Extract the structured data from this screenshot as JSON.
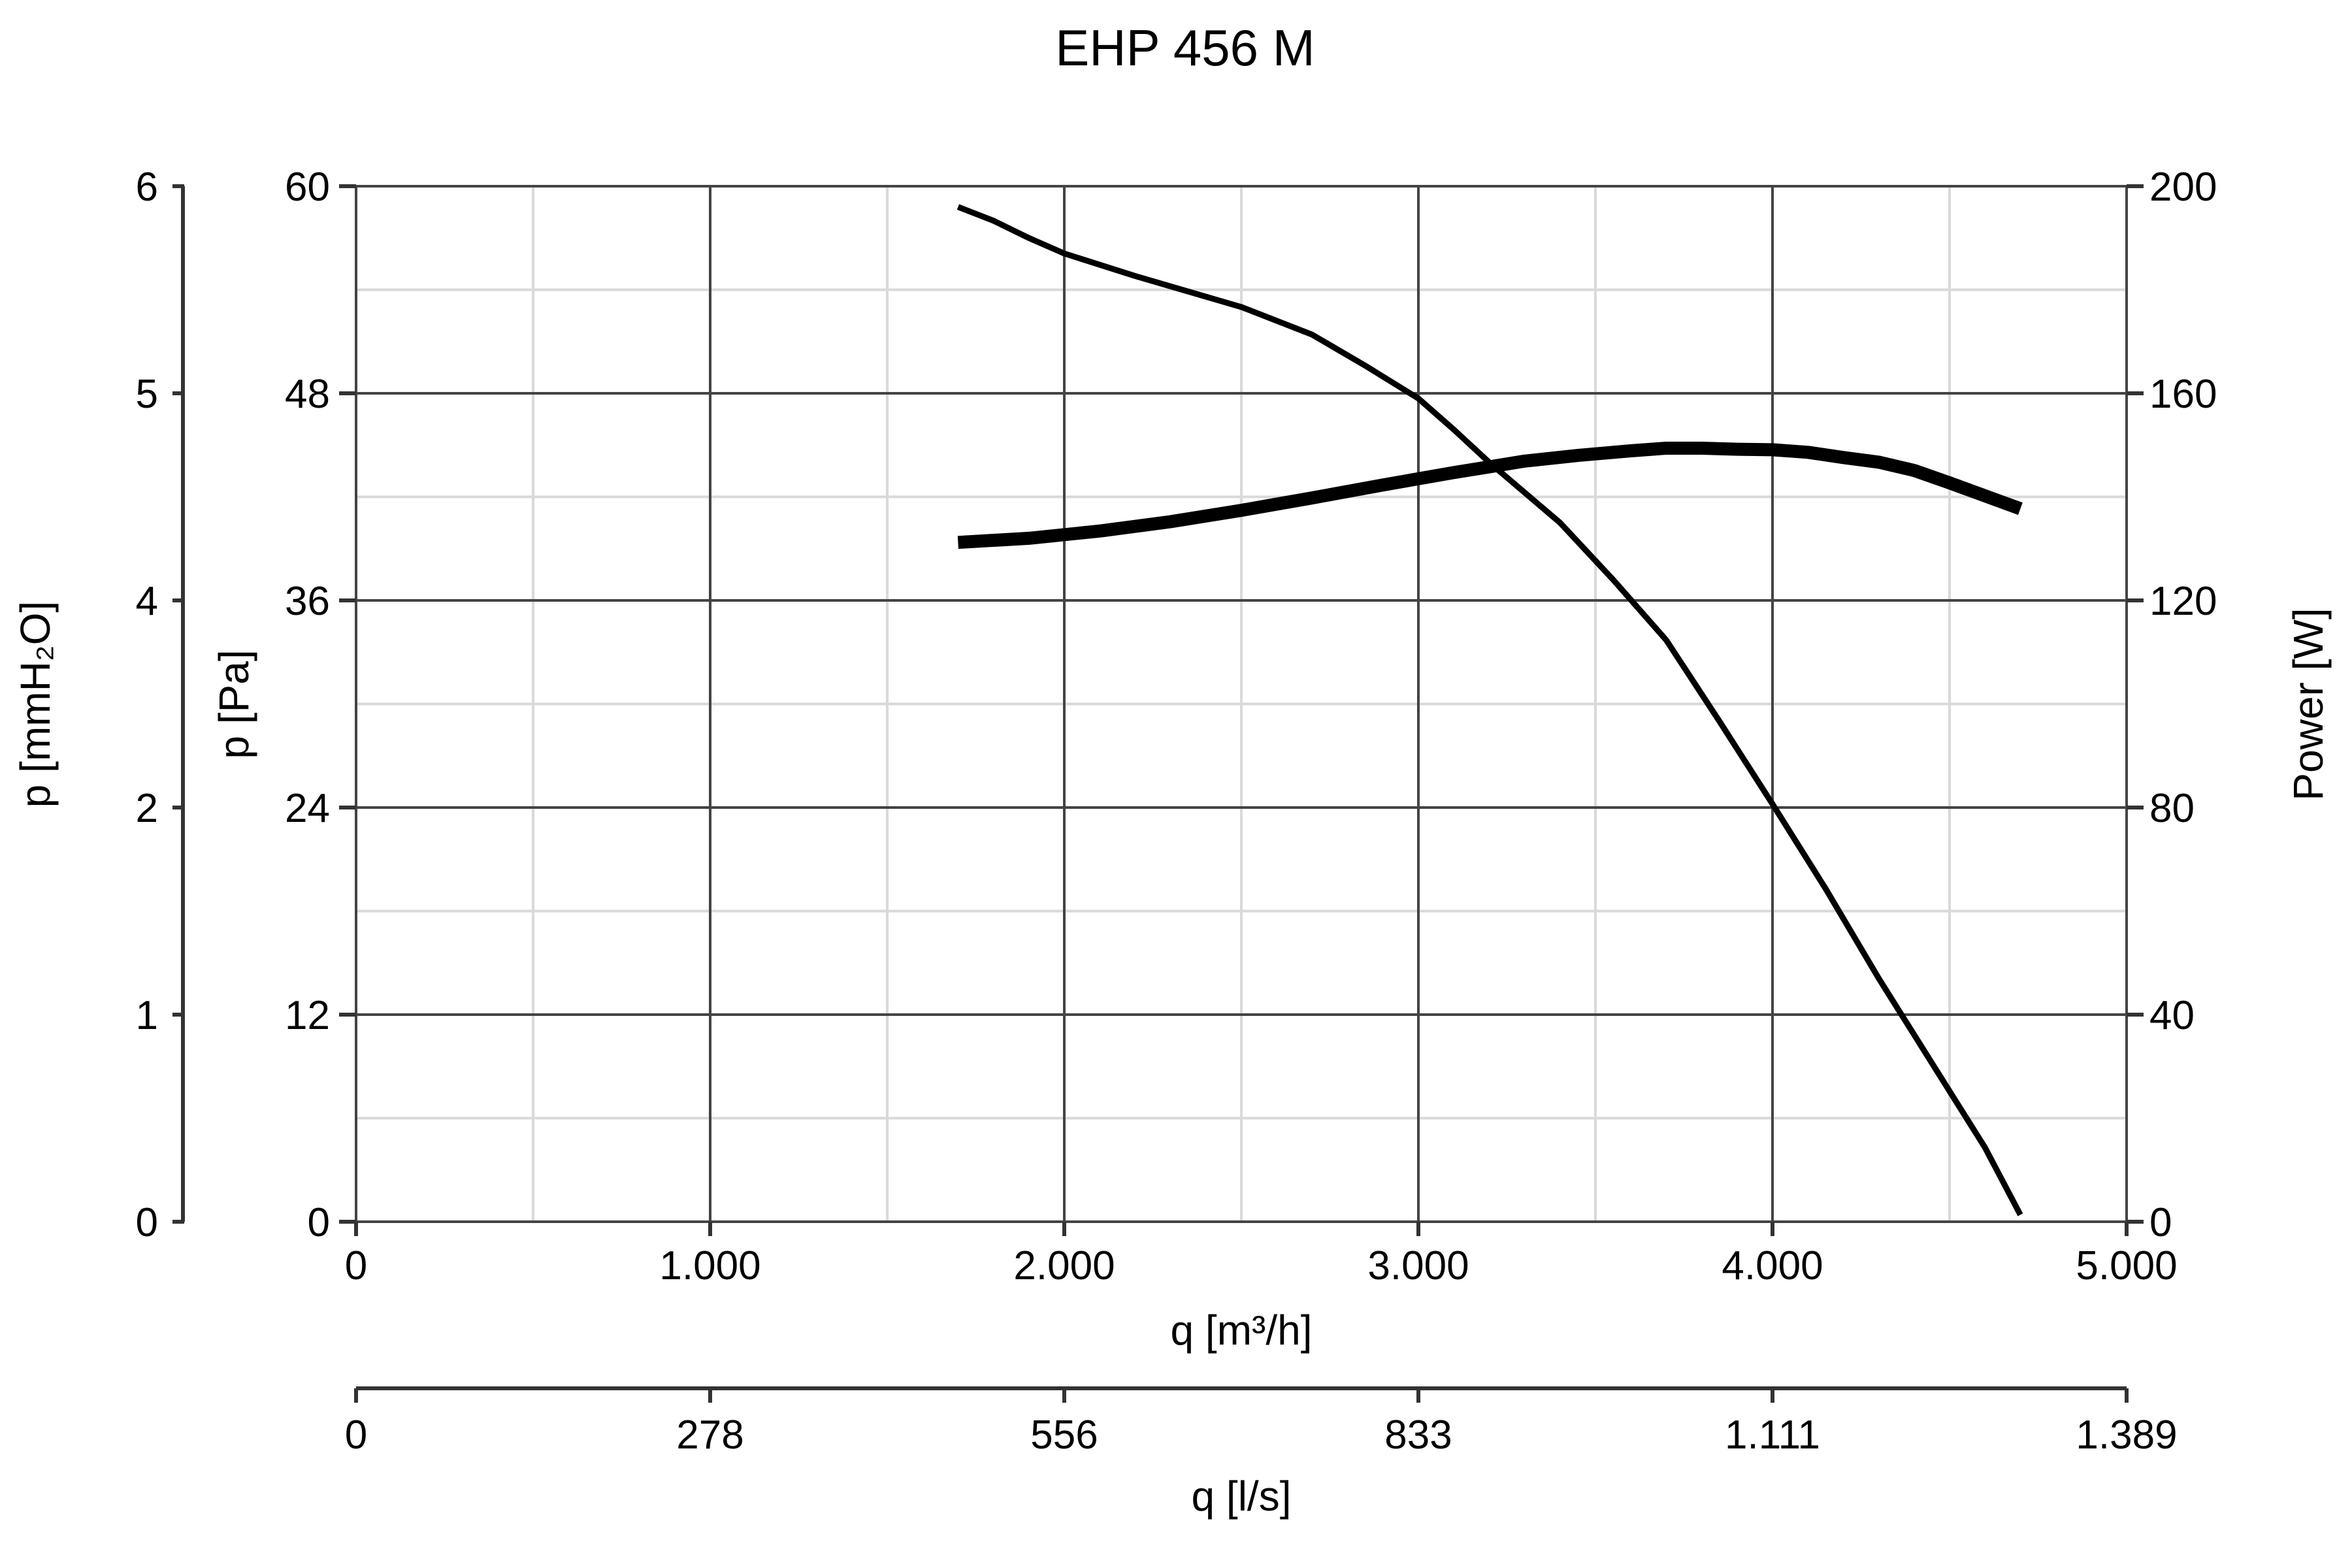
{
  "chart_data": {
    "type": "line",
    "title": "EHP 456 M",
    "x_axis": {
      "label": "q [m³/h]",
      "range": [
        0,
        5000
      ],
      "ticks": [
        0,
        1000,
        2000,
        3000,
        4000,
        5000
      ],
      "tick_labels": [
        "0",
        "1.000",
        "2.000",
        "3.000",
        "4.000",
        "5.000"
      ],
      "minor_step": 500
    },
    "x2_axis": {
      "label": "q [l/s]",
      "tick_labels": [
        "0",
        "278",
        "556",
        "833",
        "1.111",
        "1.389"
      ]
    },
    "y_axis": {
      "label": "p [Pa]",
      "range": [
        0,
        60
      ],
      "ticks": [
        0,
        12,
        24,
        36,
        48,
        60
      ],
      "tick_labels": [
        "0",
        "12",
        "24",
        "36",
        "48",
        "60"
      ],
      "minor_step": 6
    },
    "y_outer_axis": {
      "label": "p [mmH₂O]",
      "tick_labels": [
        "0",
        "1",
        "2",
        "4",
        "5",
        "6"
      ]
    },
    "y_right_axis": {
      "label": "Power [W]",
      "range": [
        0,
        200
      ],
      "ticks": [
        0,
        40,
        80,
        120,
        160,
        200
      ],
      "tick_labels": [
        "0",
        "40",
        "80",
        "120",
        "160",
        "200"
      ]
    },
    "grid": true,
    "series": [
      {
        "axis": "left",
        "color": "#000000",
        "x": [
          1700,
          1800,
          1900,
          2000,
          2200,
          2500,
          2700,
          2850,
          3000,
          3100,
          3200,
          3400,
          3550,
          3700,
          3850,
          4000,
          4150,
          4300,
          4450,
          4600,
          4700
        ],
        "y": [
          58.8,
          58.0,
          57.0,
          56.1,
          54.8,
          53.0,
          51.4,
          49.6,
          47.7,
          45.9,
          44.0,
          40.5,
          37.2,
          33.7,
          29.0,
          24.2,
          19.3,
          14.1,
          9.2,
          4.3,
          0.4
        ]
      },
      {
        "axis": "right",
        "color": "#000000",
        "x": [
          1700,
          1900,
          2100,
          2300,
          2500,
          2700,
          2900,
          3100,
          3300,
          3450,
          3600,
          3700,
          3800,
          3900,
          4000,
          4100,
          4200,
          4300,
          4400,
          4500,
          4600,
          4700
        ],
        "y": [
          131.2,
          132.0,
          133.4,
          135.2,
          137.4,
          139.8,
          142.3,
          144.7,
          146.9,
          148.0,
          148.9,
          149.4,
          149.4,
          149.2,
          149.1,
          148.6,
          147.6,
          146.7,
          145.1,
          142.7,
          140.2,
          137.7
        ]
      }
    ]
  }
}
